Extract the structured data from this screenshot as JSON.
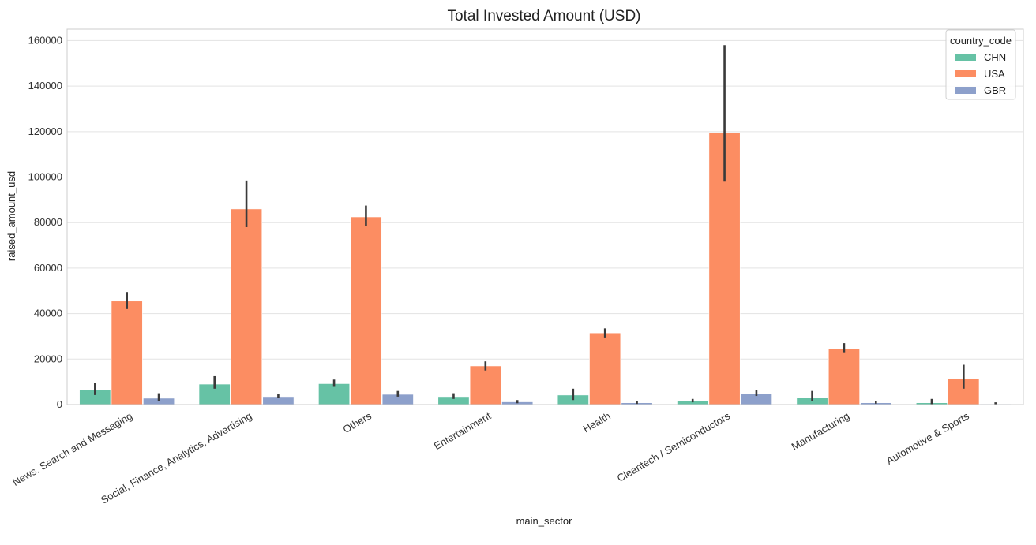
{
  "chart_data": {
    "type": "bar",
    "title": "Total Invested Amount (USD)",
    "xlabel": "main_sector",
    "ylabel": "raised_amount_usd",
    "ylim": [
      0,
      165000
    ],
    "yticks": [
      0,
      20000,
      40000,
      60000,
      80000,
      100000,
      120000,
      140000,
      160000
    ],
    "grid": true,
    "legend": {
      "title": "country_code",
      "position": "top-right"
    },
    "categories": [
      "News, Search and Messaging",
      "Social, Finance, Analytics, Advertising",
      "Others",
      "Entertainment",
      "Health",
      "Cleantech / Semiconductors",
      "Manufacturing",
      "Automotive & Sports"
    ],
    "series": [
      {
        "name": "CHN",
        "color": "#66c2a5",
        "values": [
          6500,
          9000,
          9200,
          3500,
          4200,
          1500,
          3000,
          800
        ],
        "error_low": [
          4200,
          7000,
          7800,
          2500,
          2000,
          1000,
          1500,
          200
        ],
        "error_high": [
          9500,
          12500,
          11000,
          5000,
          7000,
          2500,
          6000,
          2500
        ]
      },
      {
        "name": "USA",
        "color": "#fc8d62",
        "values": [
          45500,
          86000,
          82500,
          17000,
          31500,
          119500,
          24700,
          11500
        ],
        "error_low": [
          42000,
          78000,
          78500,
          15000,
          29500,
          98000,
          23000,
          7000
        ],
        "error_high": [
          49500,
          98500,
          87500,
          19000,
          33500,
          158000,
          27000,
          17500
        ]
      },
      {
        "name": "GBR",
        "color": "#8da0cb",
        "values": [
          2800,
          3500,
          4500,
          1200,
          800,
          4800,
          800,
          300
        ],
        "error_low": [
          1500,
          2800,
          3500,
          600,
          300,
          3800,
          400,
          100
        ],
        "error_high": [
          5000,
          4500,
          6000,
          2000,
          1500,
          6500,
          1500,
          1000
        ]
      }
    ]
  }
}
